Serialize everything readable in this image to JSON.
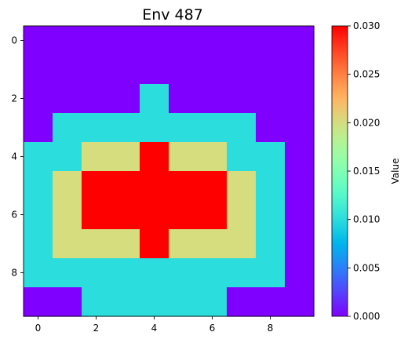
{
  "chart_data": {
    "type": "heatmap",
    "title": "Env 487",
    "xlabel": "",
    "ylabel": "",
    "x_ticks": [
      0,
      2,
      4,
      6,
      8
    ],
    "y_ticks": [
      0,
      2,
      4,
      6,
      8
    ],
    "xlim": [
      -0.5,
      9.5
    ],
    "ylim": [
      9.5,
      -0.5
    ],
    "grid": false,
    "colormap": "rainbow",
    "colorbar": {
      "label": "Value",
      "min": 0.0,
      "max": 0.03,
      "ticks": [
        "0.000",
        "0.005",
        "0.010",
        "0.015",
        "0.020",
        "0.025",
        "0.030"
      ]
    },
    "values": [
      [
        0,
        0,
        0,
        0,
        0,
        0,
        0,
        0,
        0,
        0
      ],
      [
        0,
        0,
        0,
        0,
        0,
        0,
        0,
        0,
        0,
        0
      ],
      [
        0,
        0,
        0,
        0,
        0.01,
        0,
        0,
        0,
        0,
        0
      ],
      [
        0,
        0.01,
        0.01,
        0.01,
        0.01,
        0.01,
        0.01,
        0.01,
        0,
        0
      ],
      [
        0.01,
        0.01,
        0.02,
        0.02,
        0.03,
        0.02,
        0.02,
        0.01,
        0.01,
        0
      ],
      [
        0.01,
        0.02,
        0.03,
        0.03,
        0.03,
        0.03,
        0.03,
        0.02,
        0.01,
        0
      ],
      [
        0.01,
        0.02,
        0.03,
        0.03,
        0.03,
        0.03,
        0.03,
        0.02,
        0.01,
        0
      ],
      [
        0.01,
        0.02,
        0.02,
        0.02,
        0.03,
        0.02,
        0.02,
        0.02,
        0.01,
        0
      ],
      [
        0.01,
        0.01,
        0.01,
        0.01,
        0.01,
        0.01,
        0.01,
        0.01,
        0.01,
        0
      ],
      [
        0,
        0,
        0.01,
        0.01,
        0.01,
        0.01,
        0.01,
        0,
        0,
        0
      ]
    ]
  }
}
